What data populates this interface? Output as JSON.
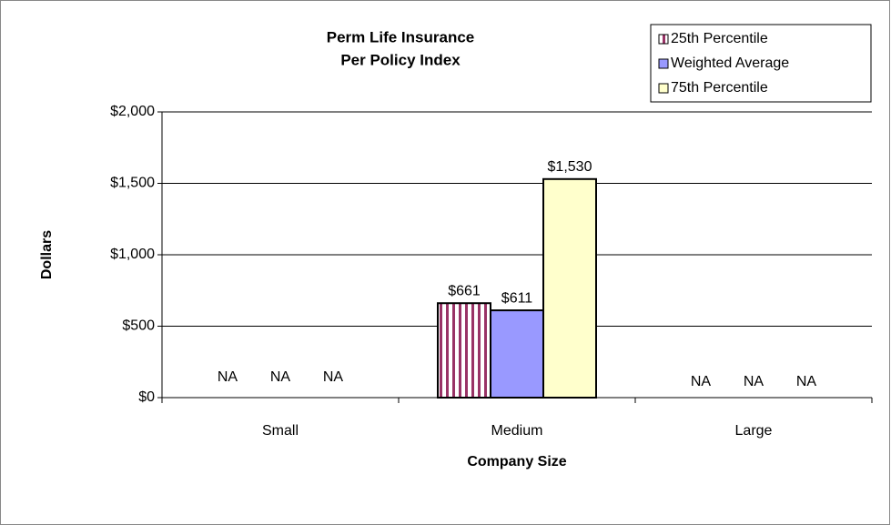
{
  "chart_data": {
    "type": "bar",
    "title": [
      "Perm Life Insurance",
      "Per Policy Index"
    ],
    "x_label": "Company Size",
    "y_label": "Dollars",
    "categories": [
      "Small",
      "Medium",
      "Large"
    ],
    "series": [
      {
        "name": "25th Percentile",
        "color": "#993366",
        "pattern": "vertical-stripes",
        "values": [
          null,
          661,
          null
        ],
        "value_labels": [
          "NA",
          "$661",
          "NA"
        ]
      },
      {
        "name": "Weighted Average",
        "color": "#9999ff",
        "values": [
          null,
          611,
          null
        ],
        "value_labels": [
          "NA",
          "$611",
          "NA"
        ]
      },
      {
        "name": "75th Percentile",
        "color": "#ffffcc",
        "values": [
          null,
          1530,
          null
        ],
        "value_labels": [
          "NA",
          "$1,530",
          "NA"
        ]
      }
    ],
    "ylim": [
      0,
      2000
    ],
    "yticks": [
      {
        "value": 0,
        "label": "$0"
      },
      {
        "value": 500,
        "label": "$500"
      },
      {
        "value": 1000,
        "label": "$1,000"
      },
      {
        "value": 1500,
        "label": "$1,500"
      },
      {
        "value": 2000,
        "label": "$2,000"
      }
    ],
    "grid": true,
    "legend": "top-right"
  }
}
